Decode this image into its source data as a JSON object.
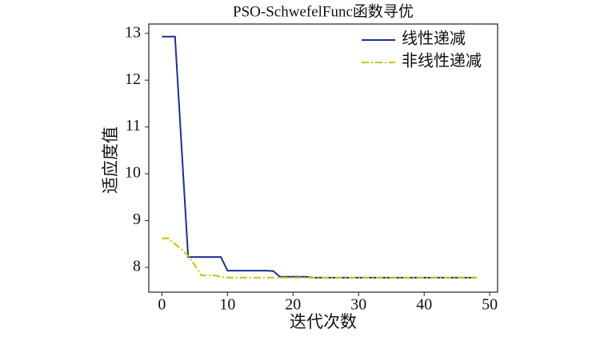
{
  "chart_data": {
    "type": "line",
    "title": "PSO-SchwefelFunc函数寻优",
    "x_label": "迭代次数",
    "y_label": "适应度值",
    "x": [
      0,
      1,
      2,
      3,
      4,
      5,
      6,
      7,
      8,
      9,
      10,
      11,
      12,
      13,
      14,
      15,
      16,
      17,
      18,
      19,
      20,
      21,
      22,
      23,
      24,
      25,
      26,
      27,
      28,
      29,
      30,
      31,
      32,
      33,
      34,
      35,
      36,
      37,
      38,
      39,
      40,
      41,
      42,
      43,
      44,
      45,
      46,
      47,
      48
    ],
    "series": [
      {
        "name": "线性递减",
        "color": "#1f2f8f",
        "dash": "solid",
        "values": [
          12.93,
          12.93,
          12.93,
          10.57,
          8.22,
          8.22,
          8.22,
          8.22,
          8.22,
          8.22,
          7.93,
          7.93,
          7.93,
          7.93,
          7.93,
          7.93,
          7.93,
          7.92,
          7.8,
          7.8,
          7.8,
          7.8,
          7.8,
          7.78,
          7.78,
          7.78,
          7.78,
          7.78,
          7.78,
          7.78,
          7.78,
          7.78,
          7.78,
          7.78,
          7.78,
          7.78,
          7.78,
          7.78,
          7.78,
          7.78,
          7.78,
          7.78,
          7.78,
          7.78,
          7.78,
          7.78,
          7.78,
          7.78,
          7.78
        ]
      },
      {
        "name": "非线性递减",
        "color": "#c8c400",
        "dash": "dashdot",
        "values": [
          8.62,
          8.62,
          8.5,
          8.38,
          8.25,
          8.05,
          7.83,
          7.83,
          7.83,
          7.8,
          7.78,
          7.78,
          7.78,
          7.78,
          7.78,
          7.78,
          7.78,
          7.78,
          7.78,
          7.78,
          7.78,
          7.78,
          7.78,
          7.78,
          7.78,
          7.78,
          7.78,
          7.78,
          7.78,
          7.78,
          7.78,
          7.78,
          7.78,
          7.78,
          7.78,
          7.78,
          7.78,
          7.78,
          7.78,
          7.78,
          7.78,
          7.78,
          7.78,
          7.78,
          7.78,
          7.78,
          7.78,
          7.78,
          7.78
        ]
      }
    ],
    "xlim": [
      -2,
      51.2
    ],
    "ylim": [
      7.47,
      13.2
    ],
    "xticks": [
      0,
      10,
      20,
      30,
      40,
      50
    ],
    "yticks": [
      8,
      9,
      10,
      11,
      12,
      13
    ],
    "legend": "upper-right",
    "grid": false
  }
}
